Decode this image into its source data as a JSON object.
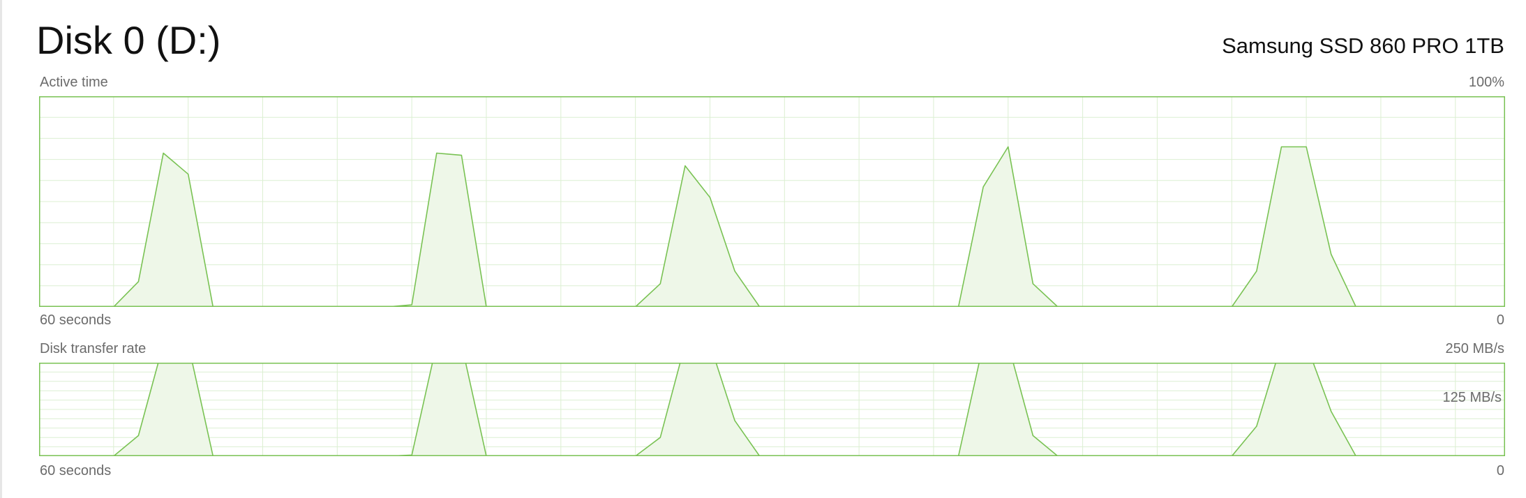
{
  "header": {
    "title": "Disk 0 (D:)",
    "device": "Samsung SSD 860 PRO 1TB"
  },
  "colors": {
    "line": "#79c253",
    "fill": "#eef7e8",
    "grid": "#dcefd2",
    "border": "#79c253",
    "label": "#6b6b6b"
  },
  "active_time_chart": {
    "title": "Active time",
    "max_label": "100%",
    "x_start_label": "60 seconds",
    "x_end_label": "0"
  },
  "transfer_rate_chart": {
    "title": "Disk transfer rate",
    "max_label": "250 MB/s",
    "mid_label": "125 MB/s",
    "x_start_label": "60 seconds",
    "x_end_label": "0"
  },
  "chart_data": [
    {
      "type": "area",
      "title": "Active time",
      "xlabel": "",
      "ylabel": "",
      "x_range_label": [
        "60 seconds",
        "0"
      ],
      "ylim": [
        0,
        100
      ],
      "y_unit": "%",
      "grid": true,
      "series": [
        {
          "values": [
            0,
            0,
            0,
            0,
            12,
            73,
            63,
            0,
            0,
            0,
            0,
            0,
            0,
            0,
            0,
            1,
            73,
            72,
            0,
            0,
            0,
            0,
            0,
            0,
            0,
            11,
            67,
            52,
            17,
            0,
            0,
            0,
            0,
            0,
            0,
            0,
            0,
            0,
            57,
            76,
            11,
            0,
            0,
            0,
            0,
            0,
            0,
            0,
            0,
            17,
            76,
            76,
            25,
            0,
            0,
            0,
            0,
            0,
            0,
            0
          ]
        }
      ]
    },
    {
      "type": "area",
      "title": "Disk transfer rate",
      "xlabel": "",
      "ylabel": "",
      "x_range_label": [
        "60 seconds",
        "0"
      ],
      "ylim": [
        0,
        250
      ],
      "y_unit": "MB/s",
      "grid": true,
      "series": [
        {
          "values": [
            0,
            0,
            0,
            0,
            55,
            300,
            300,
            0,
            0,
            0,
            0,
            0,
            0,
            0,
            0,
            3,
            300,
            300,
            0,
            0,
            0,
            0,
            0,
            0,
            0,
            50,
            300,
            300,
            95,
            0,
            0,
            0,
            0,
            0,
            0,
            0,
            0,
            0,
            300,
            300,
            55,
            0,
            0,
            0,
            0,
            0,
            0,
            0,
            0,
            80,
            300,
            300,
            120,
            0,
            0,
            0,
            0,
            0,
            0,
            0
          ]
        }
      ]
    }
  ]
}
